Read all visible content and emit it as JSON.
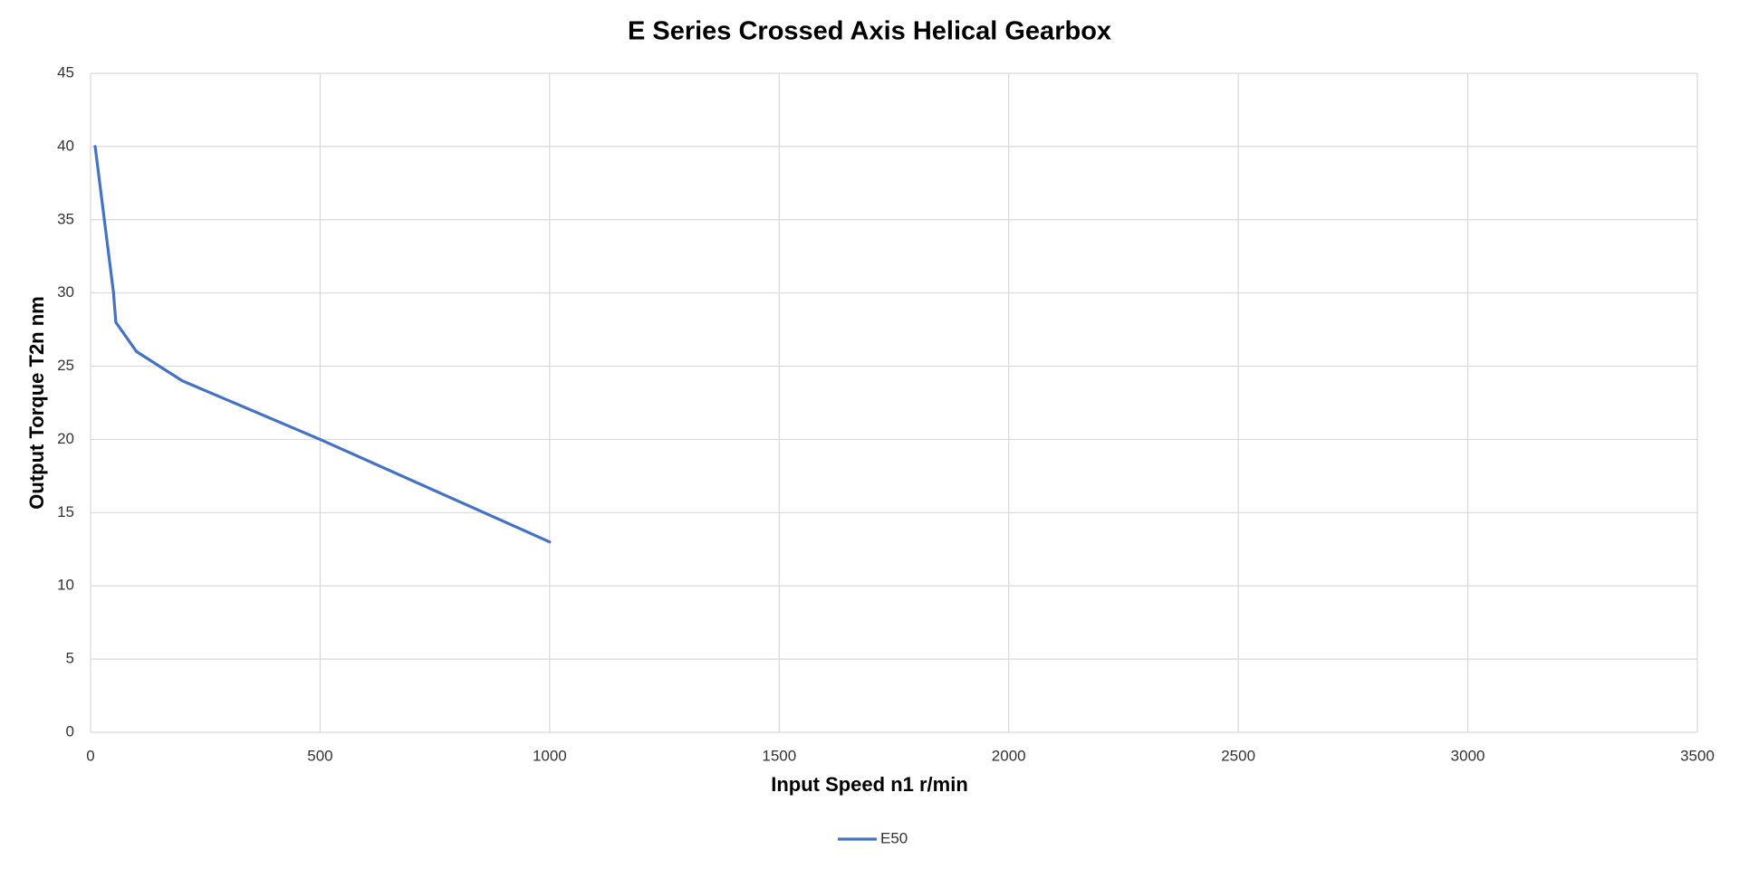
{
  "chart_data": {
    "type": "line",
    "title": "E Series Crossed Axis Helical Gearbox",
    "xlabel": "Input Speed n1 r/min",
    "ylabel": "Output Torque T2n nm",
    "x": [
      10,
      50,
      55,
      100,
      200,
      500,
      1000
    ],
    "series": [
      {
        "name": "E50",
        "color": "#4472c4",
        "values": [
          40,
          30,
          28,
          26,
          24,
          20,
          13
        ]
      }
    ],
    "xlim": [
      0,
      3500
    ],
    "xticks": [
      0,
      500,
      1000,
      1500,
      2000,
      2500,
      3000,
      3500
    ],
    "ylim": [
      0,
      45
    ],
    "yticks": [
      0,
      5,
      10,
      15,
      20,
      25,
      30,
      35,
      40,
      45
    ],
    "grid": true,
    "legend": "bottom"
  }
}
